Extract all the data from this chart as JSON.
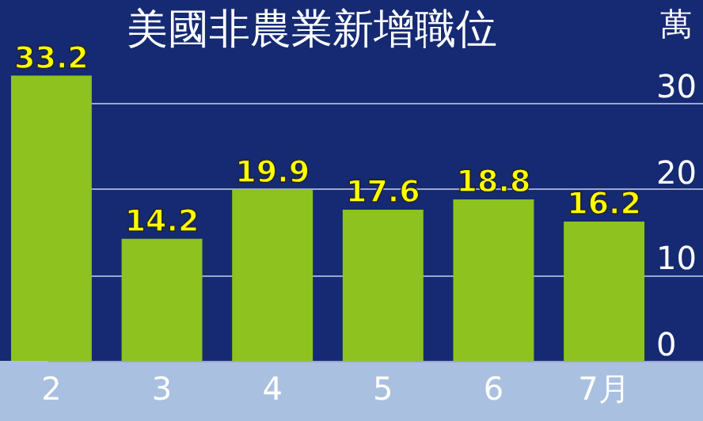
{
  "chart_data": {
    "type": "bar",
    "title": "美國非農業新增職位",
    "ylabel": "萬",
    "categories": [
      "2",
      "3",
      "4",
      "5",
      "6",
      "7月"
    ],
    "values": [
      33.2,
      14.2,
      19.9,
      17.6,
      18.8,
      16.2
    ],
    "color": "#8dc21f",
    "ylim": [
      0,
      42
    ],
    "yticks": [
      0,
      10,
      20,
      30
    ],
    "grid": "y",
    "data_labels": true
  }
}
